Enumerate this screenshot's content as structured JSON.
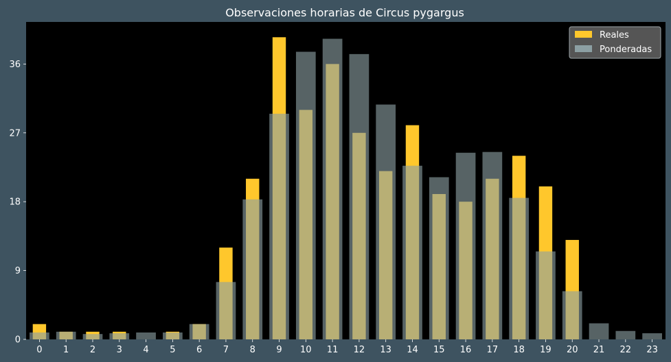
{
  "colors": {
    "background": "#3e5360",
    "plot_area": "#000000",
    "reales": "#ffc72c",
    "ponderadas": "#8c9fa3",
    "overlap": "#d2cd8a",
    "legend_bg": "#555555"
  },
  "chart_data": {
    "type": "bar",
    "title": "Observaciones horarias de Circus pygargus",
    "xlabel": "",
    "ylabel": "",
    "categories": [
      "0",
      "1",
      "2",
      "3",
      "4",
      "5",
      "6",
      "7",
      "8",
      "9",
      "10",
      "11",
      "12",
      "13",
      "14",
      "15",
      "16",
      "17",
      "18",
      "19",
      "20",
      "21",
      "22",
      "23"
    ],
    "series": [
      {
        "name": "Reales",
        "values": [
          2,
          1,
          1,
          1,
          0,
          1,
          2,
          12,
          21,
          39.5,
          30,
          36,
          27,
          22,
          28,
          19,
          18,
          21,
          24,
          20,
          13,
          0,
          0,
          0
        ]
      },
      {
        "name": "Ponderadas",
        "values": [
          0.9,
          1,
          0.7,
          0.8,
          0.9,
          0.9,
          2,
          7.5,
          18.3,
          29.5,
          37.6,
          39.3,
          37.3,
          30.7,
          22.7,
          21.2,
          24.4,
          24.5,
          18.5,
          11.5,
          6.3,
          2.1,
          1.1,
          0.8
        ]
      }
    ],
    "yticks": [
      0,
      9,
      18,
      27,
      36
    ],
    "ylim": [
      0,
      41.5
    ],
    "grid": false,
    "legend_position": "top-right"
  }
}
